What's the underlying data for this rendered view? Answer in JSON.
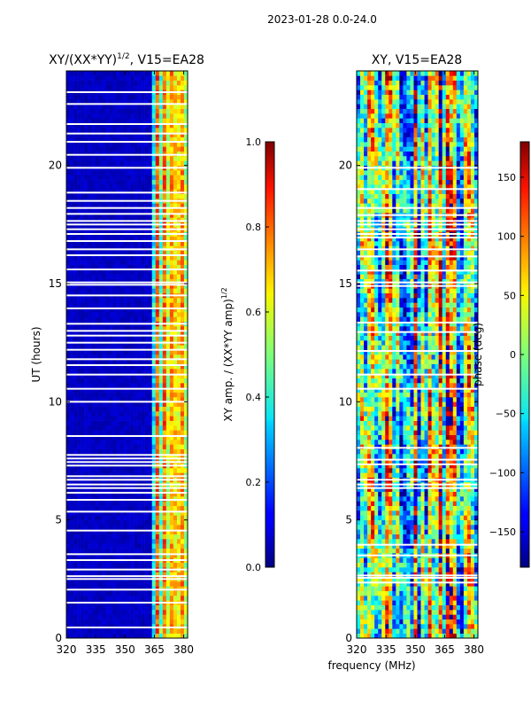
{
  "figure": {
    "suptitle": "2023-01-28 0.0-24.0",
    "xlabel": "frequency (MHz)"
  },
  "chart_data": [
    {
      "type": "heatmap",
      "title_main": "XY/(XX*YY)",
      "title_exp": "1/2",
      "title_tail": ", V15=EA28",
      "xlabel": "",
      "ylabel": "UT (hours)",
      "xlim": [
        320,
        382
      ],
      "ylim": [
        0,
        24
      ],
      "xticks": [
        "320",
        "335",
        "350",
        "365",
        "380"
      ],
      "xtick_values": [
        320,
        335,
        350,
        365,
        380
      ],
      "yticks": [
        "0",
        "5",
        "10",
        "15",
        "20"
      ],
      "ytick_values": [
        0,
        5,
        10,
        15,
        20
      ],
      "colorbar": {
        "label_main": "XY amp. / (XX*YY amp)",
        "label_exp": "1/2",
        "range": [
          0.0,
          1.0
        ],
        "ticks": [
          "0.0",
          "0.2",
          "0.4",
          "0.6",
          "0.8",
          "1.0"
        ],
        "tick_values": [
          0.0,
          0.2,
          0.4,
          0.6,
          0.8,
          1.0
        ]
      },
      "blank_hours": [
        0.45,
        1.5,
        2.05,
        2.5,
        2.62,
        2.9,
        3.3,
        3.55,
        4.55,
        5.35,
        5.85,
        6.15,
        6.35,
        6.5,
        6.7,
        6.85,
        7.3,
        7.45,
        7.6,
        7.75,
        8.55,
        10.0,
        10.55,
        11.15,
        11.55,
        11.8,
        12.2,
        12.5,
        12.8,
        13.0,
        13.3,
        13.95,
        14.5,
        14.95,
        15.05,
        15.6,
        16.2,
        16.45,
        16.8,
        17.1,
        17.3,
        17.5,
        17.65,
        17.95,
        18.2,
        18.5,
        18.85,
        19.9,
        20.45,
        21.0,
        21.35,
        21.75,
        22.6,
        23.1
      ],
      "band_description": "low amplitude (~0.05) from 320 to 363 MHz; moderate amplitude (~0.3-0.7) from 363 to 382 MHz"
    },
    {
      "type": "heatmap",
      "title": "XY, V15=EA28",
      "xlabel": "frequency (MHz)",
      "ylabel": "",
      "xlim": [
        320,
        382
      ],
      "ylim": [
        0,
        24
      ],
      "xticks": [
        "320",
        "335",
        "350",
        "365",
        "380"
      ],
      "xtick_values": [
        320,
        335,
        350,
        365,
        380
      ],
      "yticks": [
        "0",
        "5",
        "10",
        "15",
        "20"
      ],
      "ytick_values": [
        0,
        5,
        10,
        15,
        20
      ],
      "colorbar": {
        "label": "phase (deg)",
        "range": [
          -180,
          180
        ],
        "ticks": [
          "−150",
          "−100",
          "−50",
          "0",
          "50",
          "100",
          "150"
        ],
        "tick_values": [
          -150,
          -100,
          -50,
          0,
          50,
          100,
          150
        ]
      },
      "blank_hours": [
        2.35,
        2.55,
        2.65,
        3.5,
        3.95,
        6.35,
        6.5,
        6.7,
        7.35,
        7.55,
        8.05,
        10.55,
        11.15,
        12.15,
        12.95,
        13.35,
        14.9,
        15.05,
        15.55,
        16.15,
        16.45,
        16.95,
        17.1,
        17.3,
        17.5,
        17.65,
        17.9,
        18.2,
        19.0,
        19.9
      ]
    }
  ]
}
